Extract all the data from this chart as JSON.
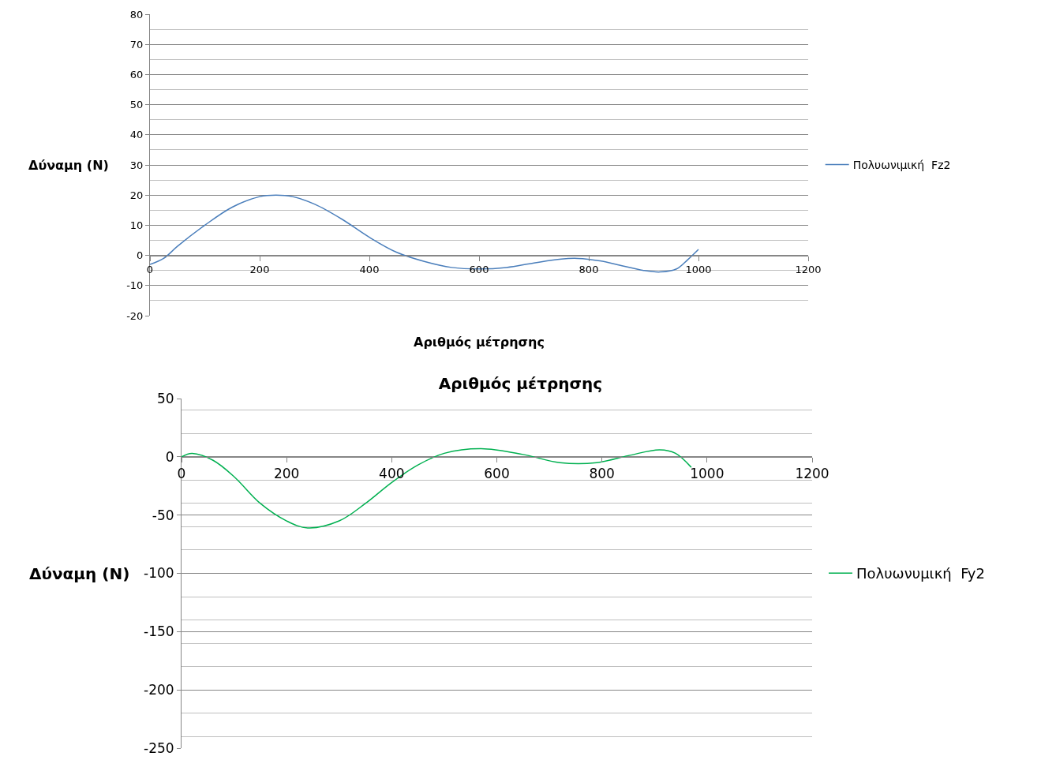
{
  "chart_data": [
    {
      "type": "line",
      "xlabel": "Αριθμός μέτρησης",
      "ylabel": "Δύναμη (N)",
      "xlim": [
        0,
        1200
      ],
      "xticks": [
        0,
        200,
        400,
        600,
        800,
        1000,
        1200
      ],
      "ylim": [
        -20,
        80
      ],
      "yticks": [
        -20,
        -10,
        0,
        10,
        20,
        30,
        40,
        50,
        60,
        70,
        80
      ],
      "grid": "y",
      "legend": "right",
      "marker": "none",
      "line_style": "solid",
      "series": [
        {
          "name": "Πολυωνιμική  Fz2",
          "color": "#4a7ebb",
          "x": [
            0,
            25,
            50,
            100,
            150,
            200,
            230,
            260,
            300,
            350,
            400,
            450,
            500,
            550,
            600,
            650,
            700,
            750,
            780,
            820,
            850,
            900,
            930,
            960,
            980,
            1000
          ],
          "values": [
            -3,
            -1,
            3,
            10,
            16,
            19.5,
            20,
            19.5,
            17,
            12,
            6,
            1,
            -2,
            -4,
            -4.5,
            -4,
            -2.5,
            -1.2,
            -1,
            -1.8,
            -3,
            -5,
            -5.5,
            -4.5,
            -1.5,
            2
          ]
        }
      ]
    },
    {
      "type": "line",
      "title": "Αριθμός μέτρησης",
      "ylabel": "Δύναμη (N)",
      "xlim": [
        0,
        1200
      ],
      "xticks": [
        0,
        200,
        400,
        600,
        800,
        1000,
        1200
      ],
      "ylim": [
        -250,
        50
      ],
      "yticks": [
        -250,
        -200,
        -150,
        -100,
        -50,
        0,
        50
      ],
      "grid": "y",
      "legend": "right",
      "marker": "none",
      "line_style": "solid",
      "series": [
        {
          "name": "Πολυωνυμική  Fy2",
          "color": "#00b050",
          "x": [
            0,
            20,
            60,
            100,
            150,
            200,
            240,
            300,
            350,
            400,
            450,
            500,
            570,
            650,
            720,
            790,
            850,
            910,
            940,
            970
          ],
          "values": [
            0,
            3,
            -3,
            -17,
            -40,
            -55,
            -61,
            -55,
            -40,
            -22,
            -7,
            3,
            7,
            2,
            -5,
            -5,
            1,
            6,
            3,
            -9
          ]
        }
      ]
    }
  ]
}
